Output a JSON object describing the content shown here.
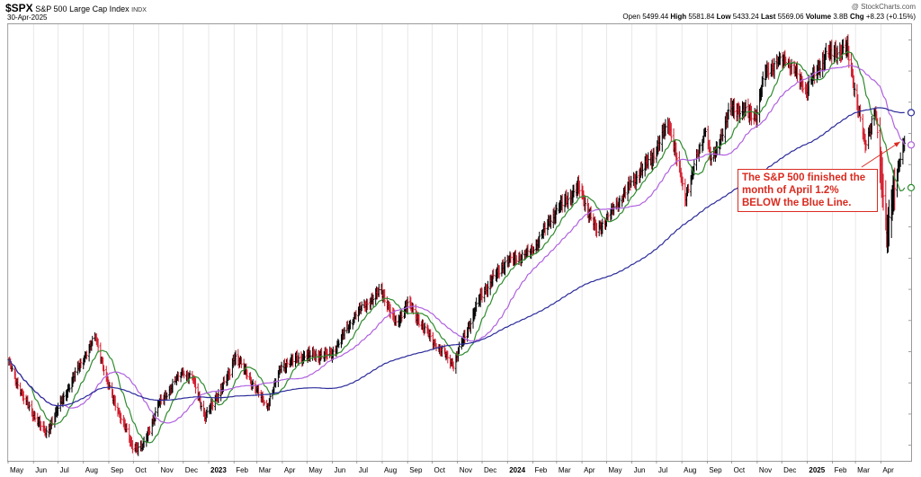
{
  "header": {
    "symbol": "$SPX",
    "name": "S&P 500 Large Cap Index",
    "exchange": "INDX",
    "date": "30-Apr-2025",
    "credit": "@ StockCharts.com",
    "quote": {
      "open_label": "Open",
      "open": "5499.44",
      "high_label": "High",
      "high": "5581.84",
      "low_label": "Low",
      "low": "5433.24",
      "last_label": "Last",
      "last": "5569.06",
      "volume_label": "Volume",
      "volume": "3.8B",
      "chg_label": "Chg",
      "chg": "+8.23 (+0.15%)"
    }
  },
  "annotation": {
    "line1": "The S&P 500 finished the",
    "line2": "month of April 1.2%",
    "line3": "BELOW the Blue Line."
  },
  "colors": {
    "up_bar": "#000000",
    "down_bar": "#d11a2a",
    "ma_green": "#2e8b2e",
    "ma_violet": "#b060e0",
    "ma_blue": "#2b2b9a",
    "annotation": "#d92b20",
    "grid": "#d8d8d8"
  },
  "chart_data": {
    "type": "ohlc-bar",
    "x_axis_labels": [
      "May",
      "Jun",
      "Jul",
      "Aug",
      "Sep",
      "Oct",
      "Nov",
      "Dec",
      "2023",
      "Feb",
      "Mar",
      "Apr",
      "May",
      "Jun",
      "Jul",
      "Aug",
      "Sep",
      "Oct",
      "Nov",
      "Dec",
      "2024",
      "Feb",
      "Mar",
      "Apr",
      "May",
      "Jun",
      "Jul",
      "Aug",
      "Sep",
      "Oct",
      "Nov",
      "Dec",
      "2025",
      "Feb",
      "Mar",
      "Apr"
    ],
    "months": [
      "2022-05",
      "2022-06",
      "2022-07",
      "2022-08",
      "2022-09",
      "2022-10",
      "2022-11",
      "2022-12",
      "2023-01",
      "2023-02",
      "2023-03",
      "2023-04",
      "2023-05",
      "2023-06",
      "2023-07",
      "2023-08",
      "2023-09",
      "2023-10",
      "2023-11",
      "2023-12",
      "2024-01",
      "2024-02",
      "2024-03",
      "2024-04",
      "2024-05",
      "2024-06",
      "2024-07",
      "2024-08",
      "2024-09",
      "2024-10",
      "2024-11",
      "2024-12",
      "2025-01",
      "2025-02",
      "2025-03",
      "2025-04"
    ],
    "price_path": [
      [
        "2022-05-01",
        4150
      ],
      [
        "2022-05-20",
        3900
      ],
      [
        "2022-06-16",
        3670
      ],
      [
        "2022-07-01",
        3830
      ],
      [
        "2022-07-29",
        4130
      ],
      [
        "2022-08-16",
        4300
      ],
      [
        "2022-09-01",
        3970
      ],
      [
        "2022-09-30",
        3590
      ],
      [
        "2022-10-12",
        3580
      ],
      [
        "2022-11-01",
        3860
      ],
      [
        "2022-11-30",
        4080
      ],
      [
        "2022-12-13",
        4020
      ],
      [
        "2022-12-28",
        3780
      ],
      [
        "2023-01-27",
        4060
      ],
      [
        "2023-02-02",
        4180
      ],
      [
        "2023-03-13",
        3850
      ],
      [
        "2023-03-31",
        4110
      ],
      [
        "2023-04-28",
        4170
      ],
      [
        "2023-05-31",
        4180
      ],
      [
        "2023-06-30",
        4450
      ],
      [
        "2023-07-31",
        4590
      ],
      [
        "2023-08-18",
        4370
      ],
      [
        "2023-09-01",
        4510
      ],
      [
        "2023-09-29",
        4290
      ],
      [
        "2023-10-27",
        4120
      ],
      [
        "2023-11-30",
        4560
      ],
      [
        "2023-12-29",
        4770
      ],
      [
        "2024-01-31",
        4850
      ],
      [
        "2024-02-29",
        5100
      ],
      [
        "2024-03-28",
        5250
      ],
      [
        "2024-04-19",
        4970
      ],
      [
        "2024-05-31",
        5280
      ],
      [
        "2024-06-28",
        5460
      ],
      [
        "2024-07-16",
        5670
      ],
      [
        "2024-08-05",
        5190
      ],
      [
        "2024-08-30",
        5640
      ],
      [
        "2024-09-06",
        5410
      ],
      [
        "2024-09-30",
        5760
      ],
      [
        "2024-10-31",
        5710
      ],
      [
        "2024-11-11",
        6000
      ],
      [
        "2024-12-06",
        6090
      ],
      [
        "2024-12-31",
        5880
      ],
      [
        "2025-01-24",
        6100
      ],
      [
        "2025-02-19",
        6140
      ],
      [
        "2025-03-13",
        5520
      ],
      [
        "2025-03-25",
        5770
      ],
      [
        "2025-04-08",
        4980
      ],
      [
        "2025-04-30",
        5569
      ]
    ],
    "ylim": [
      3500,
      6300
    ],
    "x_range": [
      "2022-05-01",
      "2025-05-08"
    ],
    "moving_averages": [
      {
        "color_key": "ma_green",
        "period_days": 20
      },
      {
        "color_key": "ma_violet",
        "period_days": 50
      },
      {
        "color_key": "ma_blue",
        "period_days": 200
      }
    ],
    "annotation_target": [
      "2025-04-30",
      5569
    ],
    "grid": true
  }
}
